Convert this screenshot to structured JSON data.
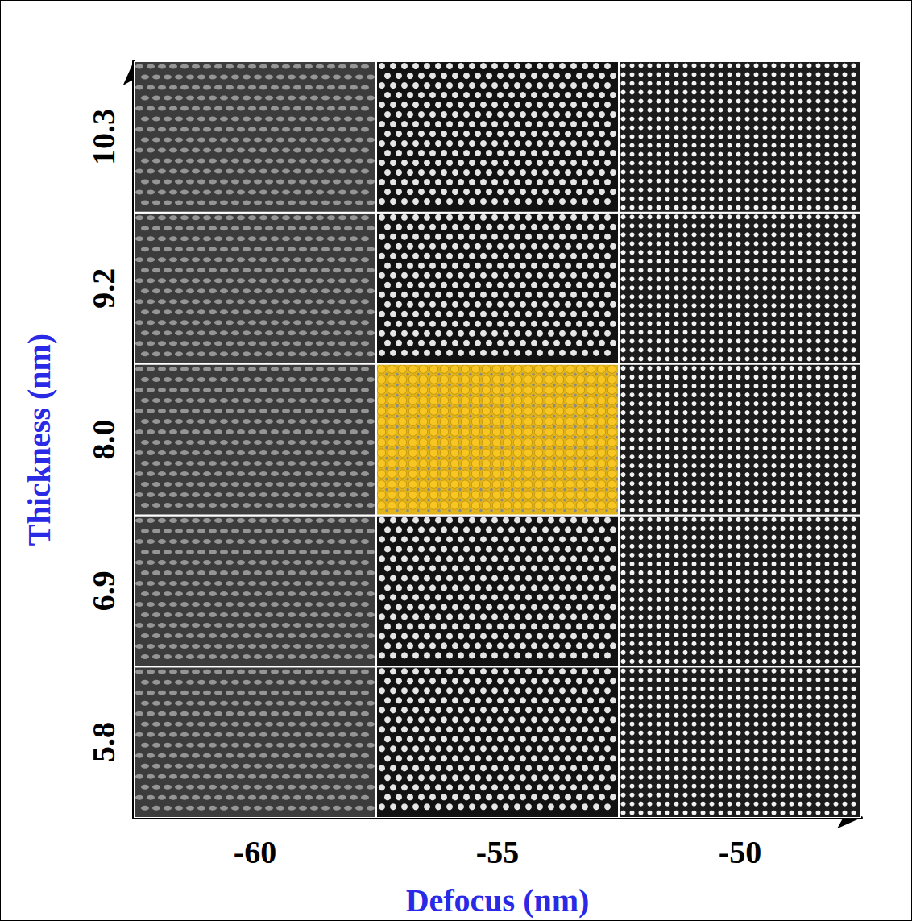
{
  "chart_data": {
    "type": "image_grid",
    "x_label": "Defocus (nm)",
    "y_label": "Thickness (nm)",
    "xticks": [
      -60,
      -55,
      -50
    ],
    "yticks": [
      5.8,
      6.9,
      {
        "value": 8.0,
        "label": "8.0"
      },
      9.2,
      10.3
    ],
    "highlight": {
      "x": -55,
      "y": 8.0
    }
  }
}
